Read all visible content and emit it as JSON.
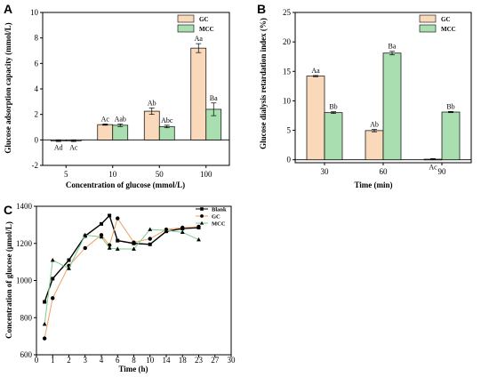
{
  "colors": {
    "gc": "#FAD9BA",
    "mcc": "#A8DEB0",
    "blank": "#000000",
    "gc_line": "#F0A060",
    "mcc_line": "#7FCB8F",
    "axis": "#000000"
  },
  "chart_data": [
    {
      "panel": "A",
      "type": "bar",
      "categories": [
        "5",
        "10",
        "50",
        "100"
      ],
      "series": [
        {
          "name": "GC",
          "values": [
            -0.08,
            1.2,
            2.25,
            7.2
          ],
          "errors": [
            0.05,
            0.05,
            0.25,
            0.35
          ],
          "labels": [
            "Ad",
            "Ac",
            "Ab",
            "Aa"
          ]
        },
        {
          "name": "MCC",
          "values": [
            -0.08,
            1.15,
            1.05,
            2.4
          ],
          "errors": [
            0.05,
            0.1,
            0.1,
            0.5
          ],
          "labels": [
            "Ac",
            "Aab",
            "Abc",
            "Ba"
          ]
        }
      ],
      "xlabel": "Concentration of glucose (mmol/L)",
      "ylabel": "Glucose adsorption capacity (mmol/L)",
      "ylim": [
        -2,
        10
      ],
      "yticks": [
        "-2",
        "0",
        "2",
        "4",
        "6",
        "8",
        "10"
      ],
      "legend": "top-right"
    },
    {
      "panel": "B",
      "type": "bar",
      "categories": [
        "30",
        "60",
        "90"
      ],
      "series": [
        {
          "name": "GC",
          "values": [
            14.2,
            4.95,
            0.1
          ],
          "errors": [
            0.1,
            0.2,
            0.1
          ],
          "labels": [
            "Aa",
            "Ab",
            "Ac"
          ]
        },
        {
          "name": "MCC",
          "values": [
            8.0,
            18.1,
            8.1
          ],
          "errors": [
            0.15,
            0.3,
            0.1
          ],
          "labels": [
            "Bb",
            "Ba",
            "Bb"
          ]
        }
      ],
      "xlabel": "Time (min)",
      "ylabel": "Glucose dialysis retardation index (%)",
      "ylim": [
        -0.5,
        25
      ],
      "yticks": [
        "0",
        "5",
        "10",
        "15",
        "20",
        "25"
      ],
      "legend": "top-right"
    },
    {
      "panel": "C",
      "type": "line",
      "x": [
        0.5,
        1,
        2,
        3,
        4,
        5,
        6,
        8,
        10,
        14,
        18,
        23
      ],
      "xticks": [
        "0",
        "1",
        "2",
        "3",
        "4",
        "6",
        "8",
        "10",
        "14",
        "18",
        "23",
        "27",
        "30"
      ],
      "series": [
        {
          "name": "Blank",
          "values": [
            885,
            1010,
            1110,
            1240,
            1305,
            1350,
            1215,
            1200,
            1195,
            1265,
            1280,
            1285
          ]
        },
        {
          "name": "GC",
          "values": [
            688,
            905,
            1080,
            1175,
            1245,
            1190,
            1335,
            1205,
            1225,
            1275,
            1285,
            1290
          ]
        },
        {
          "name": "MCC",
          "values": [
            765,
            1110,
            1065,
            1245,
            1235,
            1175,
            1170,
            1170,
            1275,
            1270,
            1260,
            1220
          ]
        }
      ],
      "xlabel": "Time (h)",
      "ylabel": "Concentration of glucose (μmol/L)",
      "ylim": [
        600,
        1400
      ],
      "yticks": [
        "600",
        "800",
        "1000",
        "1200",
        "1400"
      ],
      "legend": "top-right"
    }
  ]
}
